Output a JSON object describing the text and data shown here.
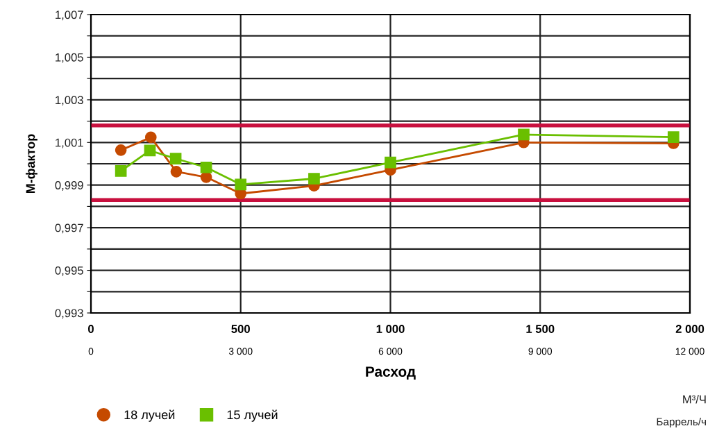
{
  "chart_data": {
    "type": "line",
    "xlabel": "Расход",
    "ylabel": "М-фактор",
    "xlim": [
      0,
      2000
    ],
    "xticks": [
      {
        "value": 0,
        "label": "0"
      },
      {
        "value": 500,
        "label": "500"
      },
      {
        "value": 1000,
        "label": "1 000"
      },
      {
        "value": 1500,
        "label": "1 500"
      },
      {
        "value": 2000,
        "label": "2 000"
      }
    ],
    "x2lim": [
      0,
      12000
    ],
    "x2ticks": [
      {
        "value": 0,
        "label": "0"
      },
      {
        "value": 3000,
        "label": "3 000"
      },
      {
        "value": 6000,
        "label": "6 000"
      },
      {
        "value": 9000,
        "label": "9 000"
      },
      {
        "value": 12000,
        "label": "12 000"
      }
    ],
    "ylim": [
      0.993,
      1.007
    ],
    "yticks": [
      {
        "value": 0.993,
        "label": "0,993"
      },
      {
        "value": 0.994,
        "label": null
      },
      {
        "value": 0.995,
        "label": "0,995"
      },
      {
        "value": 0.996,
        "label": null
      },
      {
        "value": 0.997,
        "label": "0,997"
      },
      {
        "value": 0.998,
        "label": null
      },
      {
        "value": 0.999,
        "label": "0,999"
      },
      {
        "value": 1.0,
        "label": null
      },
      {
        "value": 1.001,
        "label": "1,001"
      },
      {
        "value": 1.002,
        "label": null
      },
      {
        "value": 1.003,
        "label": "1,003"
      },
      {
        "value": 1.004,
        "label": null
      },
      {
        "value": 1.005,
        "label": "1,005"
      },
      {
        "value": 1.006,
        "label": null
      },
      {
        "value": 1.007,
        "label": "1,007"
      }
    ],
    "grid": true,
    "legend": "bottom left",
    "series": [
      {
        "name": "18 лучей",
        "color": "#c54a00",
        "marker": "circle",
        "x": [
          100,
          200,
          285,
          385,
          500,
          745,
          1000,
          1445,
          1945
        ],
        "values": [
          1.00064,
          1.00124,
          0.99963,
          0.99937,
          0.9986,
          0.99897,
          0.99971,
          1.001,
          1.00096
        ]
      },
      {
        "name": "15 лучей",
        "color": "#6abf00",
        "marker": "square",
        "x": [
          100,
          197,
          283,
          385,
          500,
          745,
          1000,
          1445,
          1945
        ],
        "values": [
          0.99966,
          1.00062,
          1.00024,
          0.99983,
          0.99903,
          0.9993,
          1.00006,
          1.00137,
          1.00125
        ]
      }
    ],
    "ref_lines": [
      {
        "axis": "y",
        "value": 1.0018,
        "color": "#c8103e"
      },
      {
        "axis": "y",
        "value": 0.9983,
        "color": "#c8103e"
      }
    ],
    "annotations": [
      "М³/Ч",
      "Баррель/ч"
    ]
  }
}
